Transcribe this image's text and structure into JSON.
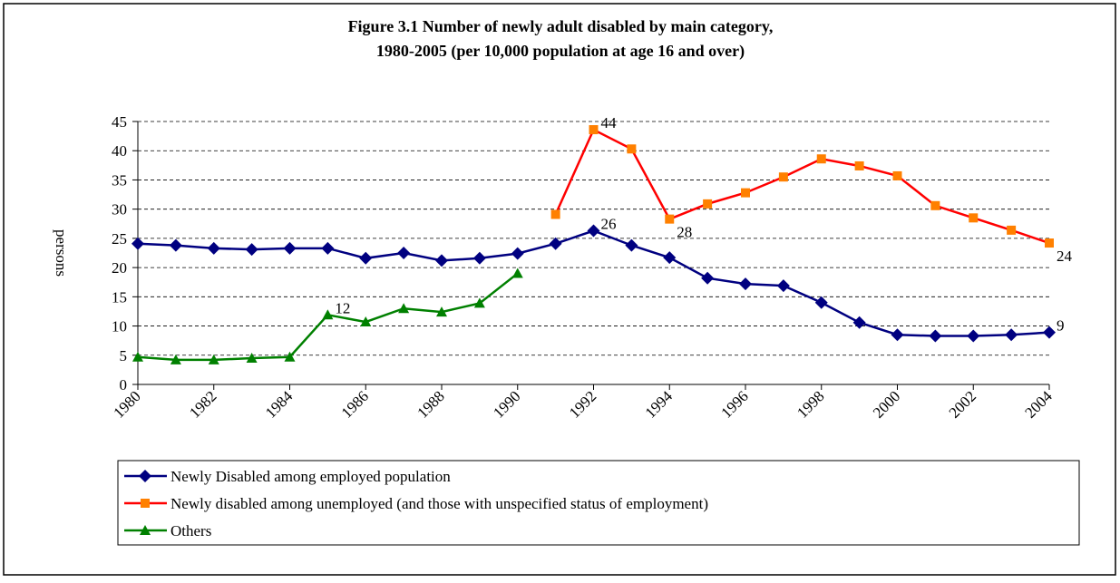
{
  "chart_data": {
    "type": "line",
    "title": [
      "Figure 3.1  Number of newly  adult disabled  by main category,",
      "1980-2005 (per 10,000 population at age 16 and over)"
    ],
    "y_label": "persons",
    "x": [
      1980,
      1981,
      1982,
      1983,
      1984,
      1985,
      1986,
      1987,
      1988,
      1989,
      1990,
      1991,
      1992,
      1993,
      1994,
      1995,
      1996,
      1997,
      1998,
      1999,
      2000,
      2001,
      2002,
      2003,
      2004
    ],
    "xlim": [
      1980,
      2004
    ],
    "xticks": [
      1980,
      1982,
      1984,
      1986,
      1988,
      1990,
      1992,
      1994,
      1996,
      1998,
      2000,
      2002,
      2004
    ],
    "ylim": [
      0,
      45
    ],
    "yticks": [
      0,
      5,
      10,
      15,
      20,
      25,
      30,
      35,
      40,
      45
    ],
    "grid": true,
    "series": [
      {
        "name": "Newly Disabled among employed population",
        "color": "#000080",
        "marker": "diamond",
        "marker_color": "#000080",
        "values": [
          24.1,
          23.8,
          23.3,
          23.1,
          23.3,
          23.3,
          21.6,
          22.5,
          21.2,
          21.6,
          22.4,
          24.1,
          26.3,
          23.8,
          21.7,
          18.2,
          17.2,
          16.9,
          14.0,
          10.6,
          8.5,
          8.3,
          8.3,
          8.5,
          8.9
        ],
        "value_labels": [
          null,
          null,
          null,
          null,
          null,
          null,
          null,
          null,
          null,
          null,
          null,
          null,
          "26",
          null,
          null,
          null,
          null,
          null,
          null,
          null,
          null,
          null,
          null,
          null,
          "9"
        ]
      },
      {
        "name": "Newly disabled among unemployed (and those with unspecified status of employment)",
        "color": "#ff0000",
        "marker": "square",
        "marker_color": "#ff8000",
        "values": [
          null,
          null,
          null,
          null,
          null,
          null,
          null,
          null,
          null,
          null,
          null,
          29.1,
          43.6,
          40.3,
          28.3,
          30.9,
          32.8,
          35.5,
          38.6,
          37.4,
          35.7,
          30.6,
          28.5,
          26.4,
          24.2
        ],
        "value_labels": [
          null,
          null,
          null,
          null,
          null,
          null,
          null,
          null,
          null,
          null,
          null,
          null,
          "44",
          null,
          "28",
          null,
          null,
          null,
          null,
          null,
          null,
          null,
          null,
          null,
          "24"
        ]
      },
      {
        "name": "Others",
        "color": "#008000",
        "marker": "triangle",
        "marker_color": "#008000",
        "values": [
          4.7,
          4.2,
          4.2,
          4.5,
          4.7,
          11.9,
          10.7,
          13.0,
          12.4,
          13.9,
          19.0,
          null,
          null,
          null,
          null,
          null,
          null,
          null,
          null,
          null,
          null,
          null,
          null,
          null,
          null
        ],
        "value_labels": [
          null,
          null,
          null,
          null,
          null,
          "12",
          null,
          null,
          null,
          null,
          null,
          null,
          null,
          null,
          null,
          null,
          null,
          null,
          null,
          null,
          null,
          null,
          null,
          null,
          null
        ]
      }
    ]
  }
}
